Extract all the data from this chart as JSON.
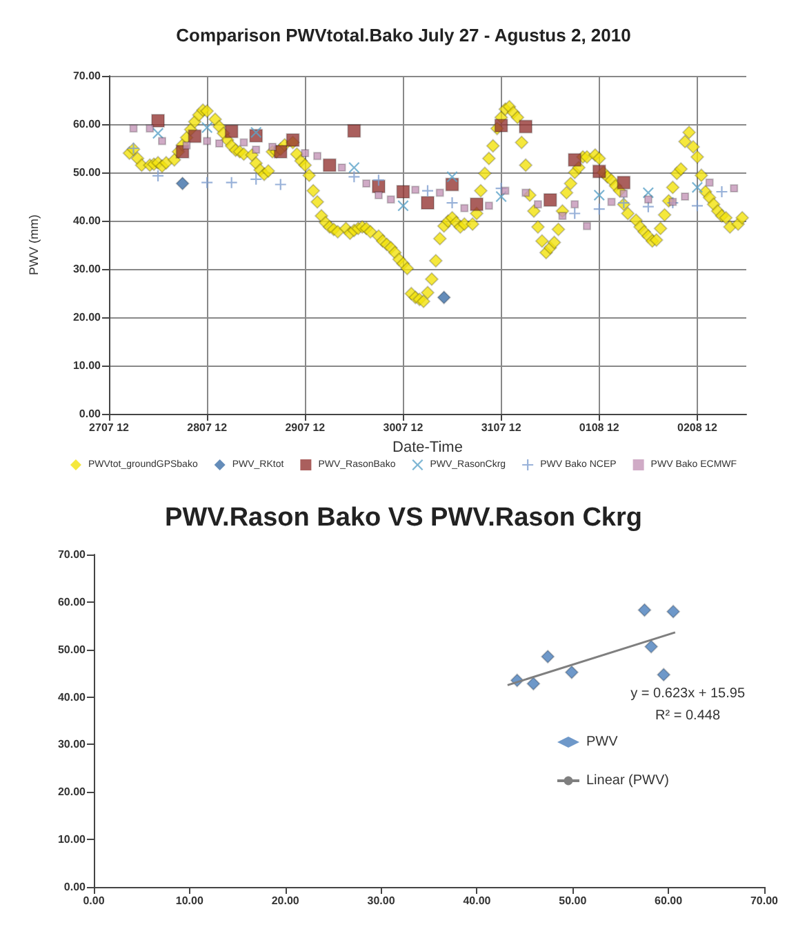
{
  "chart_data": [
    {
      "type": "scatter",
      "title": "Comparison PWVtotal.Bako July 27 - Agustus 2, 2010",
      "xlabel": "Date-Time",
      "ylabel": "PWV (mm)",
      "xlim": [
        "2010-07-27T12:00",
        "2010-08-03T00:00"
      ],
      "xticks": [
        {
          "value": "2010-07-27T12:00",
          "label": "2707 12"
        },
        {
          "value": "2010-07-28T12:00",
          "label": "2807 12"
        },
        {
          "value": "2010-07-29T12:00",
          "label": "2907 12"
        },
        {
          "value": "2010-07-30T12:00",
          "label": "3007 12"
        },
        {
          "value": "2010-07-31T12:00",
          "label": "3107 12"
        },
        {
          "value": "2010-08-01T12:00",
          "label": "0108 12"
        },
        {
          "value": "2010-08-02T12:00",
          "label": "0208 12"
        }
      ],
      "ylim": [
        0,
        70
      ],
      "yticks": [
        {
          "value": 0,
          "label": "0.00"
        },
        {
          "value": 10,
          "label": "10.00"
        },
        {
          "value": 20,
          "label": "20.00"
        },
        {
          "value": 30,
          "label": "30.00"
        },
        {
          "value": 40,
          "label": "40.00"
        },
        {
          "value": 50,
          "label": "50.00"
        },
        {
          "value": 60,
          "label": "60.00"
        },
        {
          "value": 70,
          "label": "70.00"
        }
      ],
      "grid": true,
      "legend": "bottom",
      "series": [
        {
          "name": "PWVtot_groundGPSbako",
          "color": "#f2e20c",
          "marker": "diamond",
          "x": [
            "2010-07-27T17:00",
            "2010-07-27T18:00",
            "2010-07-27T19:00",
            "2010-07-27T20:00",
            "2010-07-27T22:00",
            "2010-07-27T23:00",
            "2010-07-28T00:00",
            "2010-07-28T01:00",
            "2010-07-28T02:00",
            "2010-07-28T04:00",
            "2010-07-28T05:00",
            "2010-07-28T06:00",
            "2010-07-28T07:00",
            "2010-07-28T08:00",
            "2010-07-28T09:00",
            "2010-07-28T10:00",
            "2010-07-28T11:00",
            "2010-07-28T12:00",
            "2010-07-28T14:00",
            "2010-07-28T15:00",
            "2010-07-28T16:00",
            "2010-07-28T17:00",
            "2010-07-28T18:00",
            "2010-07-28T19:00",
            "2010-07-28T20:00",
            "2010-07-28T21:00",
            "2010-07-28T23:00",
            "2010-07-29T00:00",
            "2010-07-29T01:00",
            "2010-07-29T02:00",
            "2010-07-29T03:00",
            "2010-07-29T04:00",
            "2010-07-29T05:00",
            "2010-07-29T06:00",
            "2010-07-29T07:00",
            "2010-07-29T09:00",
            "2010-07-29T10:00",
            "2010-07-29T11:00",
            "2010-07-29T12:00",
            "2010-07-29T13:00",
            "2010-07-29T14:00",
            "2010-07-29T15:00",
            "2010-07-29T16:00",
            "2010-07-29T17:00",
            "2010-07-29T18:00",
            "2010-07-29T19:00",
            "2010-07-29T20:00",
            "2010-07-29T22:00",
            "2010-07-29T23:00",
            "2010-07-30T00:00",
            "2010-07-30T01:00",
            "2010-07-30T02:00",
            "2010-07-30T03:00",
            "2010-07-30T04:00",
            "2010-07-30T06:00",
            "2010-07-30T07:00",
            "2010-07-30T08:00",
            "2010-07-30T09:00",
            "2010-07-30T10:00",
            "2010-07-30T11:00",
            "2010-07-30T12:00",
            "2010-07-30T13:00",
            "2010-07-30T14:00",
            "2010-07-30T15:00",
            "2010-07-30T16:00",
            "2010-07-30T17:00",
            "2010-07-30T18:00",
            "2010-07-30T19:00",
            "2010-07-30T20:00",
            "2010-07-30T21:00",
            "2010-07-30T22:00",
            "2010-07-30T23:00",
            "2010-07-31T00:00",
            "2010-07-31T01:00",
            "2010-07-31T02:00",
            "2010-07-31T03:00",
            "2010-07-31T05:00",
            "2010-07-31T06:00",
            "2010-07-31T07:00",
            "2010-07-31T08:00",
            "2010-07-31T09:00",
            "2010-07-31T10:00",
            "2010-07-31T11:00",
            "2010-07-31T12:00",
            "2010-07-31T13:00",
            "2010-07-31T14:00",
            "2010-07-31T15:00",
            "2010-07-31T16:00",
            "2010-07-31T17:00",
            "2010-07-31T18:00",
            "2010-07-31T19:00",
            "2010-07-31T20:00",
            "2010-07-31T21:00",
            "2010-07-31T22:00",
            "2010-07-31T23:00",
            "2010-08-01T00:00",
            "2010-08-01T01:00",
            "2010-08-01T02:00",
            "2010-08-01T03:00",
            "2010-08-01T04:00",
            "2010-08-01T05:00",
            "2010-08-01T06:00",
            "2010-08-01T07:00",
            "2010-08-01T08:00",
            "2010-08-01T09:00",
            "2010-08-01T11:00",
            "2010-08-01T12:00",
            "2010-08-01T13:00",
            "2010-08-01T14:00",
            "2010-08-01T15:00",
            "2010-08-01T16:00",
            "2010-08-01T17:00",
            "2010-08-01T18:00",
            "2010-08-01T19:00",
            "2010-08-01T21:00",
            "2010-08-01T22:00",
            "2010-08-01T23:00",
            "2010-08-02T00:00",
            "2010-08-02T01:00",
            "2010-08-02T02:00",
            "2010-08-02T03:00",
            "2010-08-02T04:00",
            "2010-08-02T05:00",
            "2010-08-02T06:00",
            "2010-08-02T07:00",
            "2010-08-02T08:00",
            "2010-08-02T09:00",
            "2010-08-02T10:00",
            "2010-08-02T11:00",
            "2010-08-02T12:00",
            "2010-08-02T13:00",
            "2010-08-02T14:00",
            "2010-08-02T15:00",
            "2010-08-02T16:00",
            "2010-08-02T17:00",
            "2010-08-02T18:00",
            "2010-08-02T19:00",
            "2010-08-02T20:00",
            "2010-08-02T22:00",
            "2010-08-02T23:00"
          ],
          "values": [
            54.0,
            54.8,
            52.9,
            51.5,
            51.5,
            51.7,
            52.0,
            51.3,
            52.0,
            52.6,
            54.3,
            55.7,
            57.2,
            58.9,
            60.5,
            61.9,
            62.9,
            62.7,
            61.0,
            59.5,
            58.1,
            56.7,
            55.5,
            54.6,
            54.3,
            53.8,
            53.6,
            51.9,
            50.5,
            49.6,
            50.3,
            54.3,
            54.3,
            54.8,
            55.7,
            56.2,
            53.8,
            52.4,
            51.5,
            49.4,
            46.2,
            43.9,
            41.0,
            39.6,
            38.7,
            38.2,
            37.7,
            38.4,
            37.4,
            38.0,
            38.4,
            38.7,
            38.4,
            37.7,
            36.8,
            35.8,
            35.1,
            34.4,
            33.4,
            32.0,
            31.1,
            30.1,
            24.9,
            24.1,
            23.7,
            23.3,
            25.1,
            27.9,
            31.7,
            36.3,
            38.9,
            39.9,
            40.6,
            39.6,
            38.7,
            39.3,
            39.3,
            41.5,
            46.2,
            49.8,
            52.9,
            55.5,
            59.1,
            61.4,
            63.1,
            63.6,
            62.4,
            61.4,
            56.2,
            51.5,
            45.3,
            42.0,
            38.7,
            35.8,
            33.4,
            34.4,
            35.5,
            38.2,
            42.0,
            45.8,
            47.7,
            50.0,
            51.0,
            53.2,
            53.2,
            53.6,
            52.9,
            50.0,
            49.1,
            48.4,
            47.2,
            46.2,
            43.4,
            41.5,
            40.1,
            38.7,
            37.7,
            36.8,
            35.8,
            36.0,
            38.4,
            41.2,
            44.1,
            46.9,
            49.8,
            50.7,
            56.4,
            58.3,
            55.3,
            53.2,
            49.4,
            46.0,
            44.8,
            43.4,
            42.0,
            41.0,
            40.6,
            38.7,
            39.3,
            40.6
          ]
        },
        {
          "name": "PWV_RKtot",
          "color": "#3d6fa8",
          "marker": "diamond",
          "x": [
            "2010-07-28T06:00",
            "2010-07-30T22:00"
          ],
          "values": [
            47.7,
            24.1
          ]
        },
        {
          "name": "PWV_RasonBako",
          "color": "#953735",
          "marker": "square",
          "x": [
            "2010-07-28T00:00",
            "2010-07-28T06:00",
            "2010-07-28T09:00",
            "2010-07-28T18:00",
            "2010-07-29T00:00",
            "2010-07-29T06:00",
            "2010-07-29T09:00",
            "2010-07-29T18:00",
            "2010-07-30T00:00",
            "2010-07-30T06:00",
            "2010-07-30T12:00",
            "2010-07-30T18:00",
            "2010-07-31T00:00",
            "2010-07-31T06:00",
            "2010-07-31T12:00",
            "2010-07-31T18:00",
            "2010-08-01T00:00",
            "2010-08-01T06:00",
            "2010-08-01T12:00",
            "2010-08-01T18:00"
          ],
          "values": [
            60.7,
            54.3,
            57.5,
            58.5,
            57.6,
            54.3,
            56.7,
            51.5,
            58.6,
            47.1,
            46.0,
            43.7,
            47.5,
            43.4,
            59.7,
            59.5,
            44.3,
            52.6,
            50.2,
            47.9
          ]
        },
        {
          "name": "PWV_RasonCkrg",
          "color": "#5ba3c8",
          "marker": "cross",
          "x": [
            "2010-07-28T00:00",
            "2010-07-28T12:00",
            "2010-07-29T00:00",
            "2010-07-30T00:00",
            "2010-07-30T12:00",
            "2010-07-31T00:00",
            "2010-07-31T12:00",
            "2010-08-01T12:00",
            "2010-08-02T00:00",
            "2010-08-02T12:00"
          ],
          "values": [
            58.1,
            59.3,
            58.3,
            51.0,
            43.1,
            49.1,
            45.0,
            45.3,
            45.8,
            46.9
          ]
        },
        {
          "name": "PWV Bako NCEP",
          "color": "#7f9fd0",
          "marker": "plus",
          "x": [
            "2010-07-27T18:00",
            "2010-07-28T00:00",
            "2010-07-28T12:00",
            "2010-07-28T18:00",
            "2010-07-29T00:00",
            "2010-07-29T06:00",
            "2010-07-30T00:00",
            "2010-07-30T06:00",
            "2010-07-30T18:00",
            "2010-07-31T00:00",
            "2010-07-31T12:00",
            "2010-08-01T06:00",
            "2010-08-01T12:00",
            "2010-08-01T18:00",
            "2010-08-02T00:00",
            "2010-08-02T06:00",
            "2010-08-02T12:00",
            "2010-08-02T18:00"
          ],
          "values": [
            55.0,
            49.3,
            47.9,
            47.9,
            48.6,
            47.5,
            49.1,
            48.4,
            46.2,
            43.7,
            46.7,
            41.5,
            42.4,
            43.7,
            42.9,
            43.7,
            43.1,
            46.0
          ]
        },
        {
          "name": "PWV Bako ECMWF",
          "color": "#c496b8",
          "marker": "square",
          "x": [
            "2010-07-27T18:00",
            "2010-07-27T22:00",
            "2010-07-28T01:00",
            "2010-07-28T07:00",
            "2010-07-28T12:00",
            "2010-07-28T15:00",
            "2010-07-28T21:00",
            "2010-07-29T00:00",
            "2010-07-29T04:00",
            "2010-07-29T12:00",
            "2010-07-29T15:00",
            "2010-07-29T21:00",
            "2010-07-30T03:00",
            "2010-07-30T06:00",
            "2010-07-30T09:00",
            "2010-07-30T15:00",
            "2010-07-30T21:00",
            "2010-07-31T03:00",
            "2010-07-31T09:00",
            "2010-07-31T13:00",
            "2010-07-31T18:00",
            "2010-07-31T21:00",
            "2010-08-01T03:00",
            "2010-08-01T06:00",
            "2010-08-01T09:00",
            "2010-08-01T15:00",
            "2010-08-01T18:00",
            "2010-08-02T00:00",
            "2010-08-02T06:00",
            "2010-08-02T09:00",
            "2010-08-02T15:00",
            "2010-08-02T21:00"
          ],
          "values": [
            59.1,
            59.1,
            56.5,
            55.6,
            56.5,
            56.0,
            56.2,
            54.7,
            55.3,
            54.0,
            53.4,
            51.0,
            47.7,
            45.3,
            44.4,
            46.4,
            45.8,
            42.6,
            43.1,
            46.2,
            45.8,
            43.4,
            41.0,
            43.4,
            38.9,
            43.9,
            45.6,
            44.4,
            43.9,
            45.0,
            47.9,
            46.7
          ]
        }
      ]
    },
    {
      "type": "scatter",
      "title": "PWV.Rason Bako VS PWV.Rason Ckrg",
      "xlim": [
        0,
        70
      ],
      "xticks": [
        {
          "value": 0,
          "label": "0.00"
        },
        {
          "value": 10,
          "label": "10.00"
        },
        {
          "value": 20,
          "label": "20.00"
        },
        {
          "value": 30,
          "label": "30.00"
        },
        {
          "value": 40,
          "label": "40.00"
        },
        {
          "value": 50,
          "label": "50.00"
        },
        {
          "value": 60,
          "label": "60.00"
        },
        {
          "value": 70,
          "label": "70.00"
        }
      ],
      "ylim": [
        0,
        70
      ],
      "yticks": [
        {
          "value": 0,
          "label": "0.00"
        },
        {
          "value": 10,
          "label": "10.00"
        },
        {
          "value": 20,
          "label": "20.00"
        },
        {
          "value": 30,
          "label": "30.00"
        },
        {
          "value": 40,
          "label": "40.00"
        },
        {
          "value": 50,
          "label": "50.00"
        },
        {
          "value": 60,
          "label": "60.00"
        },
        {
          "value": 70,
          "label": "70.00"
        }
      ],
      "legend": "right",
      "annotations": [
        "y = 0.623x + 15.95",
        "R² = 0.448"
      ],
      "series": [
        {
          "name": "PWV",
          "color": "#4a7ebb",
          "marker": "diamond",
          "x": [
            44.2,
            45.9,
            47.4,
            49.9,
            57.5,
            58.2,
            59.5,
            60.5
          ],
          "values": [
            43.5,
            42.8,
            48.5,
            45.2,
            58.3,
            50.6,
            44.7,
            58.0
          ]
        },
        {
          "name": "Linear (PWV)",
          "type": "line",
          "color": "#7f7f7f",
          "marker": "none",
          "x": [
            43.2,
            60.7
          ],
          "values": [
            42.5,
            53.6
          ]
        }
      ]
    }
  ]
}
